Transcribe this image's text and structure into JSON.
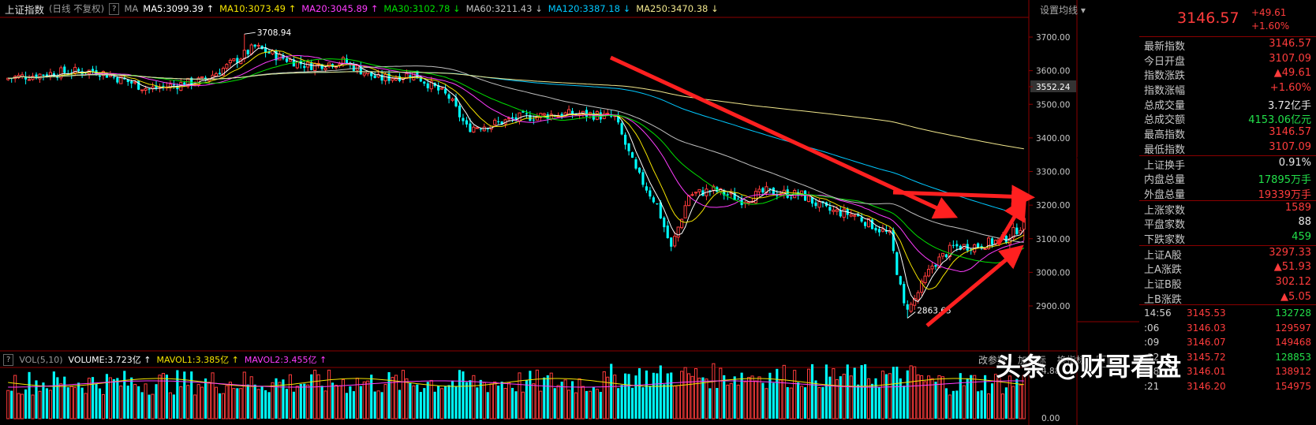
{
  "header": {
    "index_name": "上证指数",
    "mode": "(日线 不复权)",
    "ma_button": "?",
    "ma_label": "MA",
    "mas": [
      {
        "label": "MA5:3099.39",
        "arrow": "↑",
        "color": "#ffffff"
      },
      {
        "label": "MA10:3073.49",
        "arrow": "↑",
        "color": "#f5e400"
      },
      {
        "label": "MA20:3045.89",
        "arrow": "↑",
        "color": "#ff3cff"
      },
      {
        "label": "MA30:3102.78",
        "arrow": "↓",
        "color": "#00e000"
      },
      {
        "label": "MA60:3211.43",
        "arrow": "↓",
        "color": "#c0c0c0"
      },
      {
        "label": "MA120:3387.18",
        "arrow": "↓",
        "color": "#00c8ff"
      },
      {
        "label": "MA250:3470.38",
        "arrow": "↓",
        "color": "#f0e68c"
      }
    ],
    "settings": "设置均线 ▾"
  },
  "price_axis": {
    "ticks": [
      "3700.00",
      "3600.00",
      "3552.24",
      "3500.00",
      "3400.00",
      "3300.00",
      "3200.00",
      "3100.00",
      "3000.00",
      "2900.00"
    ]
  },
  "annotations": {
    "high": "3708.94",
    "low": "2863.65"
  },
  "volume_header": {
    "button": "?",
    "label": "VOL(5,10)",
    "items": [
      {
        "label": "VOLUME:3.723亿",
        "arrow": "↑",
        "color": "#ffffff"
      },
      {
        "label": "MAVOL1:3.385亿",
        "arrow": "↑",
        "color": "#f5e400"
      },
      {
        "label": "MAVOL2:3.455亿",
        "arrow": "↑",
        "color": "#ff3cff"
      }
    ],
    "tools": [
      "改参数",
      "加指标",
      "换指标"
    ],
    "close": "✕"
  },
  "volume_axis": {
    "ticks": [
      "4.88",
      "0.00"
    ]
  },
  "panel": {
    "last_price": "3146.57",
    "change": "+49.61",
    "change_pct": "+1.60%",
    "rows": [
      {
        "label": "最新指数",
        "value": "3146.57",
        "color": "red"
      },
      {
        "label": "今日开盘",
        "value": "3107.09",
        "color": "red"
      },
      {
        "label": "指数涨跌",
        "value": "▲49.61",
        "color": "red"
      },
      {
        "label": "指数涨幅",
        "value": "+1.60%",
        "color": "red"
      },
      {
        "label": "总成交量",
        "value": "3.72亿手",
        "color": "white"
      },
      {
        "label": "总成交额",
        "value": "4153.06亿元",
        "color": "green"
      },
      {
        "label": "最高指数",
        "value": "3146.57",
        "color": "red"
      },
      {
        "label": "最低指数",
        "value": "3107.09",
        "color": "red"
      }
    ],
    "rows2": [
      {
        "label": "上证换手",
        "value": "0.91%",
        "color": "white"
      },
      {
        "label": "内盘总量",
        "value": "17895万手",
        "color": "green"
      },
      {
        "label": "外盘总量",
        "value": "19339万手",
        "color": "red"
      }
    ],
    "rows3": [
      {
        "label": "上涨家数",
        "value": "1589",
        "color": "red"
      },
      {
        "label": "平盘家数",
        "value": "88",
        "color": "white"
      },
      {
        "label": "下跌家数",
        "value": "459",
        "color": "green"
      }
    ],
    "rows4": [
      {
        "label": "上证A股",
        "value": "3297.33",
        "color": "red"
      },
      {
        "label": "上A涨跌",
        "value": "▲51.93",
        "color": "red"
      },
      {
        "label": "上证B股",
        "value": "302.12",
        "color": "red"
      },
      {
        "label": "上B涨跌",
        "value": "▲5.05",
        "color": "red"
      }
    ],
    "ticks": [
      {
        "time": "14:56",
        "price": "3145.53",
        "vol": "132728",
        "vcolor": "green"
      },
      {
        "time": ":06",
        "price": "3146.03",
        "vol": "129597",
        "vcolor": "red"
      },
      {
        "time": ":09",
        "price": "3146.07",
        "vol": "149468",
        "vcolor": "red"
      },
      {
        "time": ":12",
        "price": "3145.72",
        "vol": "128853",
        "vcolor": "green"
      },
      {
        "time": ":18",
        "price": "3146.01",
        "vol": "138912",
        "vcolor": "red"
      },
      {
        "time": ":21",
        "price": "3146.20",
        "vol": "154975",
        "vcolor": "red"
      }
    ]
  },
  "watermark": "头条 @财哥看盘",
  "chart_data": {
    "type": "candlestick",
    "high": 3708.94,
    "low": 2863.65,
    "ylim": [
      2860,
      3740
    ],
    "last_close": 3146.57
  }
}
